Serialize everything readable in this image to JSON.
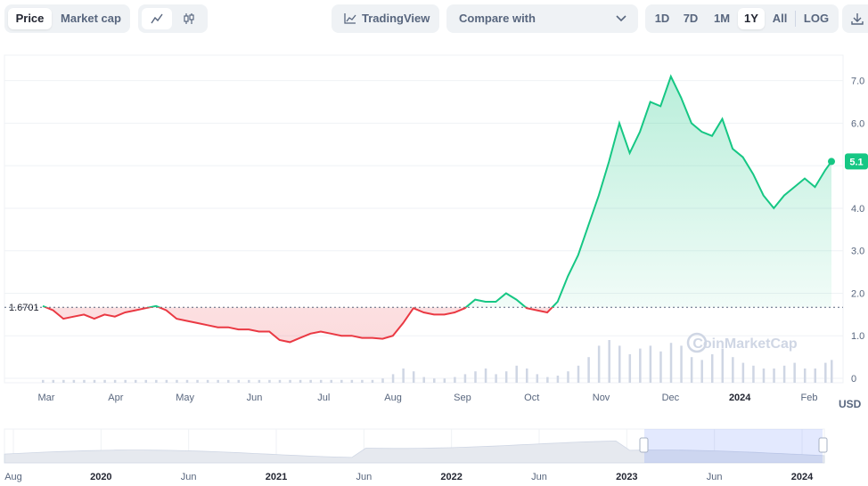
{
  "toolbar": {
    "price_tab": "Price",
    "marketcap_tab": "Market cap",
    "tradingview": "TradingView",
    "compare": "Compare with",
    "ranges": [
      "1D",
      "7D",
      "1M",
      "1Y",
      "All",
      "LOG"
    ],
    "active_range": "1Y",
    "chart_icon": "line-chart-icon",
    "candle_icon": "candlestick-icon",
    "download_icon": "download-icon"
  },
  "watermark": "CoinMarketCap",
  "currency": "USD",
  "colors": {
    "up": "#16c784",
    "down": "#ea3943",
    "accent": "#3861fb"
  },
  "chart_data": {
    "type": "line",
    "baseline": 1.6701,
    "baseline_label": "1.6701",
    "current_value": 5.1,
    "current_label": "5.1",
    "y_ticks": [
      "7.0",
      "6.0",
      "5.0",
      "4.0",
      "3.0",
      "2.0",
      "1.0",
      "0"
    ],
    "ylim": [
      0,
      7.6
    ],
    "x_ticks": [
      "Mar",
      "Apr",
      "May",
      "Jun",
      "Jul",
      "Aug",
      "Sep",
      "Oct",
      "Nov",
      "Dec",
      "2024",
      "Feb"
    ],
    "x": [
      0,
      5,
      10,
      15,
      20,
      25,
      30,
      35,
      40,
      45,
      50,
      55,
      60,
      65,
      70,
      75,
      80,
      85,
      90,
      95,
      100,
      105,
      110,
      115,
      120,
      125,
      130,
      135,
      140,
      145,
      150,
      155,
      160,
      165,
      170,
      175,
      180,
      185,
      190,
      195,
      200,
      205,
      210,
      215,
      220,
      225,
      230,
      235,
      240,
      245,
      250,
      255,
      260,
      265,
      270,
      275,
      280,
      285,
      290,
      295,
      300,
      305,
      310,
      315,
      320,
      325,
      330,
      335,
      340,
      345,
      350,
      355,
      360,
      365,
      370,
      375,
      380,
      383
    ],
    "values": [
      1.7,
      1.6,
      1.4,
      1.45,
      1.5,
      1.4,
      1.5,
      1.45,
      1.55,
      1.6,
      1.65,
      1.7,
      1.6,
      1.4,
      1.35,
      1.3,
      1.25,
      1.2,
      1.2,
      1.15,
      1.15,
      1.1,
      1.1,
      0.9,
      0.85,
      0.95,
      1.05,
      1.1,
      1.05,
      1.0,
      1.0,
      0.95,
      0.95,
      0.93,
      1.0,
      1.3,
      1.65,
      1.55,
      1.5,
      1.5,
      1.55,
      1.65,
      1.85,
      1.8,
      1.8,
      2.0,
      1.85,
      1.65,
      1.6,
      1.55,
      1.8,
      2.4,
      2.9,
      3.6,
      4.3,
      5.1,
      6.0,
      5.3,
      5.8,
      6.5,
      6.4,
      7.1,
      6.6,
      6.0,
      5.8,
      5.7,
      6.1,
      5.4,
      5.2,
      4.8,
      4.3,
      4.0,
      4.3,
      4.5,
      4.7,
      4.5,
      4.9,
      5.1
    ],
    "volume": [
      2,
      2,
      2,
      2,
      2,
      2,
      2,
      2,
      2,
      2,
      2,
      2,
      2,
      2,
      2,
      2,
      2,
      2,
      2,
      2,
      2,
      2,
      2,
      2,
      2,
      2,
      2,
      2,
      2,
      2,
      2,
      2,
      2,
      3,
      6,
      10,
      8,
      4,
      3,
      3,
      4,
      6,
      8,
      10,
      6,
      8,
      12,
      10,
      6,
      4,
      5,
      8,
      12,
      18,
      26,
      30,
      26,
      20,
      24,
      26,
      22,
      28,
      26,
      18,
      16,
      20,
      24,
      18,
      14,
      12,
      10,
      10,
      12,
      14,
      10,
      10,
      14,
      16
    ]
  },
  "navigator": {
    "labels": [
      "Aug",
      "2020",
      "Jun",
      "2021",
      "Jun",
      "2022",
      "Jun",
      "2023",
      "Jun",
      "2024"
    ]
  }
}
